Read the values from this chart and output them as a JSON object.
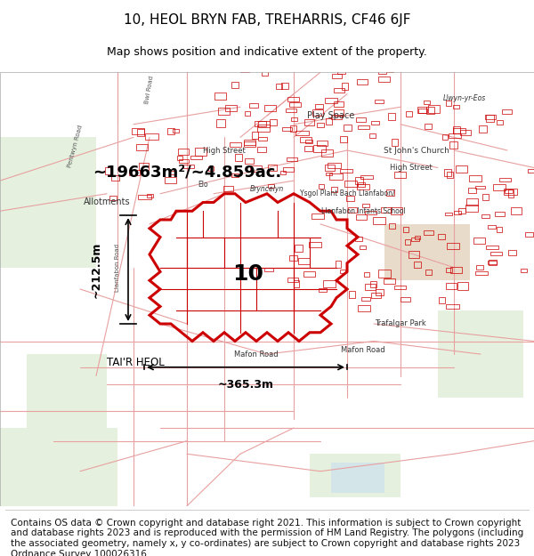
{
  "title": "10, HEOL BRYN FAB, TREHARRIS, CF46 6JF",
  "subtitle": "Map shows position and indicative extent of the property.",
  "footer": "Contains OS data © Crown copyright and database right 2021. This information is subject to Crown copyright and database rights 2023 and is reproduced with the permission of HM Land Registry. The polygons (including the associated geometry, namely x, y co-ordinates) are subject to Crown copyright and database rights 2023 Ordnance Survey 100026316.",
  "area_label": "~19663m²/~4.859ac.",
  "width_label": "~365.3m",
  "height_label": "~212.5m",
  "property_number": "10",
  "tai_r_heol": "TAI'R HEOL",
  "background_color": "#ffffff",
  "title_color": "#000000",
  "red_color": "#cc0000",
  "light_red": "#e8a0a0",
  "title_fontsize": 11,
  "subtitle_fontsize": 9,
  "footer_fontsize": 7.5
}
